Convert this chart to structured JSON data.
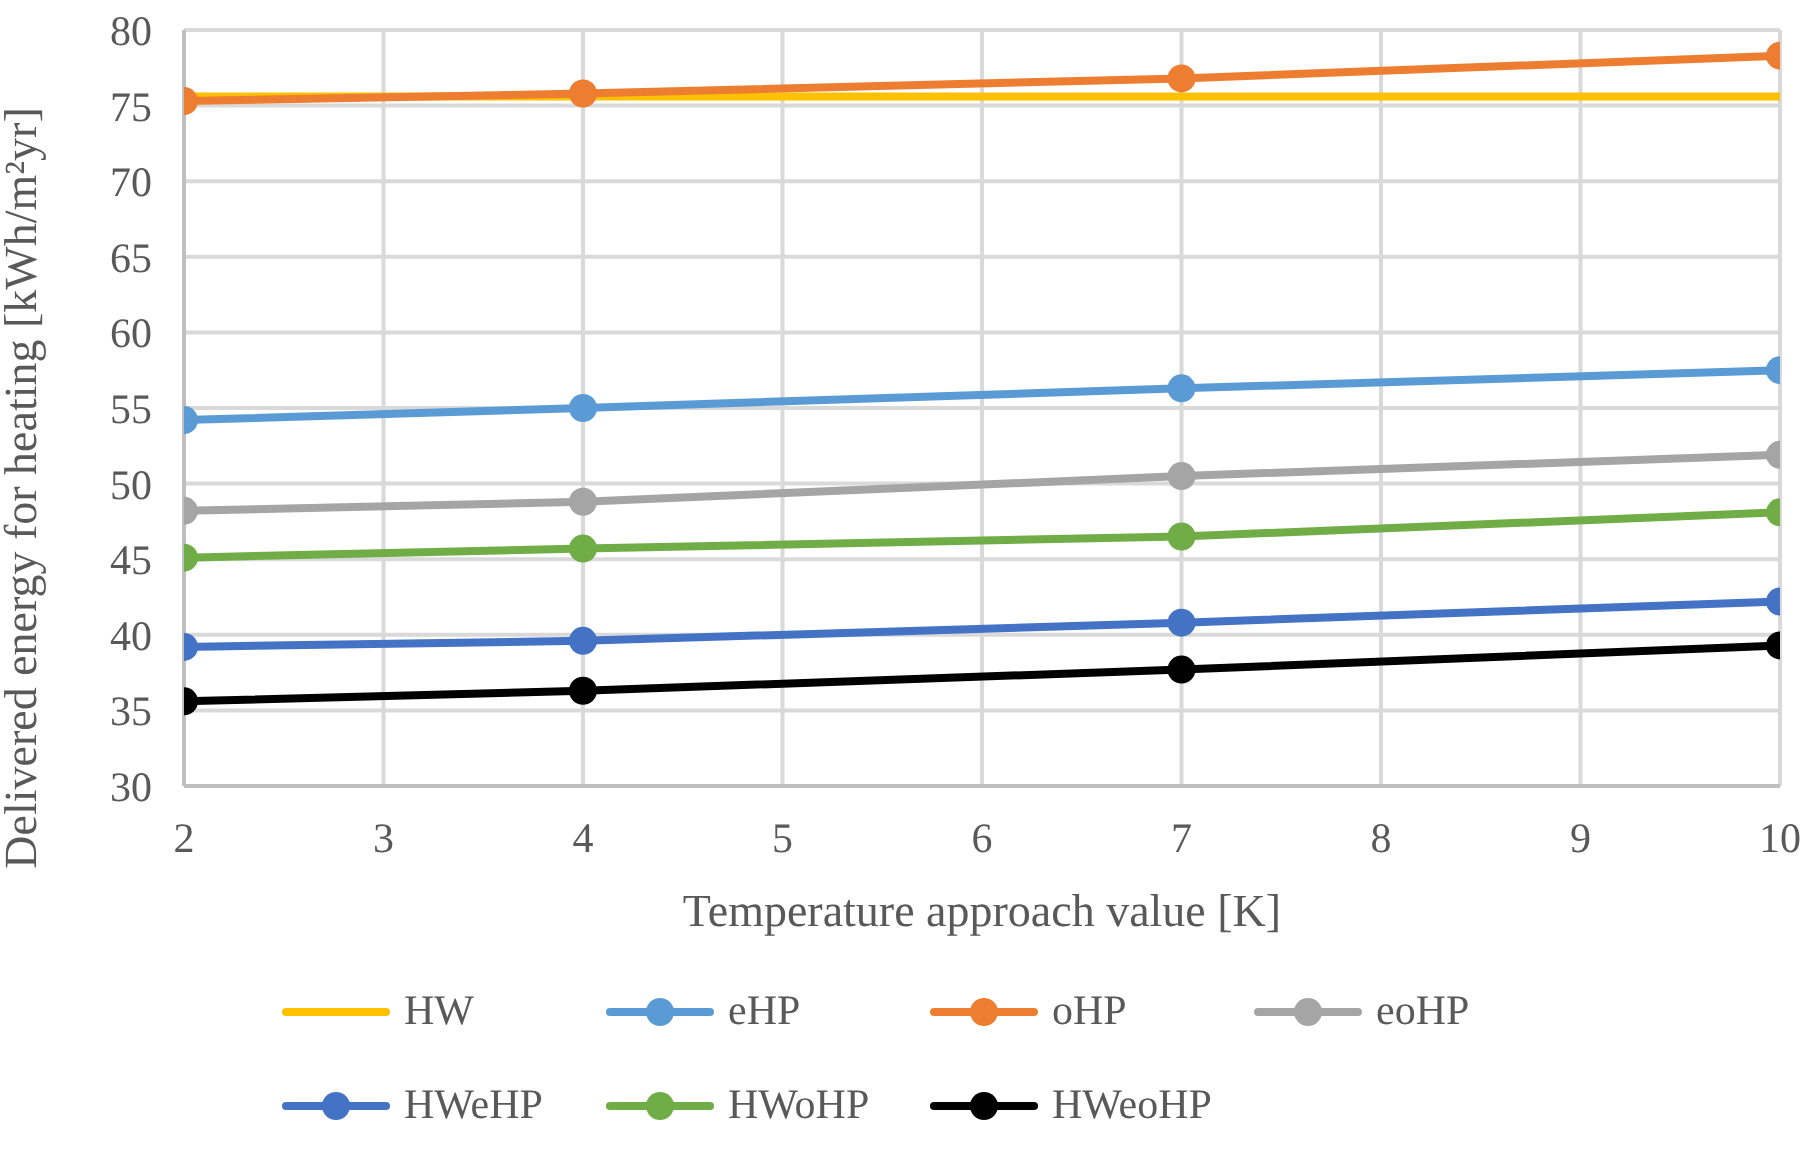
{
  "chart_data": {
    "type": "line",
    "xlabel": "Temperature approach value [K]",
    "ylabel": "Delivered energy for heating [kWh/m²yr]",
    "x": [
      2,
      4,
      7,
      10
    ],
    "xlim": [
      2,
      10
    ],
    "xticks": [
      2,
      3,
      4,
      5,
      6,
      7,
      8,
      9,
      10
    ],
    "ylim": [
      30,
      80
    ],
    "yticks": [
      30,
      35,
      40,
      45,
      50,
      55,
      60,
      65,
      70,
      75,
      80
    ],
    "grid": true,
    "legend": "bottom",
    "marker": "circle",
    "line_style": "solid",
    "series": [
      {
        "name": "HW",
        "color": "#ffc000",
        "values": [
          75.6,
          75.6,
          75.6,
          75.6
        ],
        "marker": "none"
      },
      {
        "name": "eHP",
        "color": "#5b9bd5",
        "values": [
          54.2,
          55.0,
          56.3,
          57.5
        ]
      },
      {
        "name": "oHP",
        "color": "#ed7d31",
        "values": [
          75.3,
          75.8,
          76.8,
          78.3
        ]
      },
      {
        "name": "eoHP",
        "color": "#a5a5a5",
        "values": [
          48.2,
          48.8,
          50.5,
          51.9
        ]
      },
      {
        "name": "HWeHP",
        "color": "#4472c4",
        "values": [
          39.2,
          39.6,
          40.8,
          42.2
        ]
      },
      {
        "name": "HWoHP",
        "color": "#70ad47",
        "values": [
          45.1,
          45.7,
          46.5,
          48.1
        ]
      },
      {
        "name": "HWeoHP",
        "color": "#000000",
        "values": [
          35.6,
          36.3,
          37.7,
          39.3
        ]
      }
    ]
  }
}
